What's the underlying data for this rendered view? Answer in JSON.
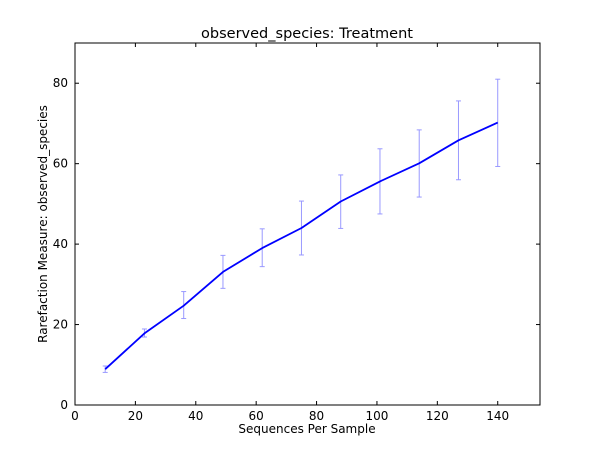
{
  "chart_data": {
    "type": "line",
    "title": "observed_species: Treatment",
    "xlabel": "Sequences Per Sample",
    "ylabel": "Rarefaction Measure: observed_species",
    "xlim": [
      0,
      154
    ],
    "ylim": [
      0,
      90
    ],
    "xticks": [
      0,
      20,
      40,
      60,
      80,
      100,
      120,
      140
    ],
    "yticks": [
      0,
      20,
      40,
      60,
      80
    ],
    "grid": false,
    "line_color": "#0000ff",
    "errorbar_color": "#9999ff",
    "series": [
      {
        "x": [
          10,
          23,
          36,
          49,
          62,
          75,
          88,
          101,
          114,
          127,
          140
        ],
        "y": [
          8.9,
          17.8,
          24.7,
          33.1,
          39.0,
          44.0,
          50.6,
          55.6,
          60.1,
          65.8,
          70.2
        ],
        "err_low": [
          8.1,
          16.9,
          21.5,
          29.0,
          34.4,
          37.3,
          43.9,
          47.5,
          51.7,
          56.0,
          59.3
        ],
        "err_high": [
          9.7,
          18.9,
          28.2,
          37.2,
          43.8,
          50.7,
          57.2,
          63.7,
          68.4,
          75.6,
          81.0
        ]
      }
    ]
  }
}
